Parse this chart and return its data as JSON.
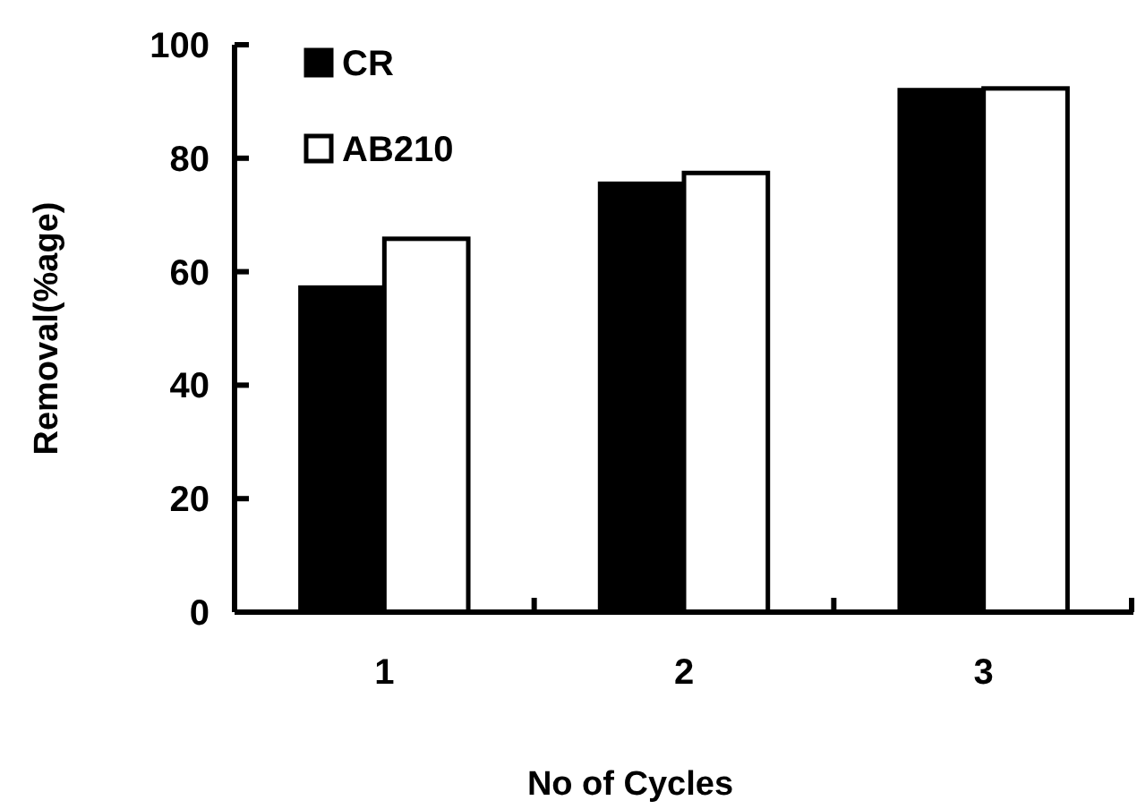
{
  "chart_data": {
    "type": "bar",
    "xlabel": "No of Cycles",
    "ylabel": "Removal(%age)",
    "categories": [
      "1",
      "2",
      "3"
    ],
    "series": [
      {
        "name": "CR",
        "color": "#000000",
        "values": [
          57.2,
          75.5,
          92.0
        ]
      },
      {
        "name": "AB210",
        "color": "#ffffff",
        "values": [
          65.8,
          77.4,
          92.3
        ]
      }
    ],
    "ylim": [
      0,
      100
    ],
    "yticks": [
      0,
      20,
      40,
      60,
      80,
      100
    ],
    "legend": "top left",
    "grid": false
  }
}
